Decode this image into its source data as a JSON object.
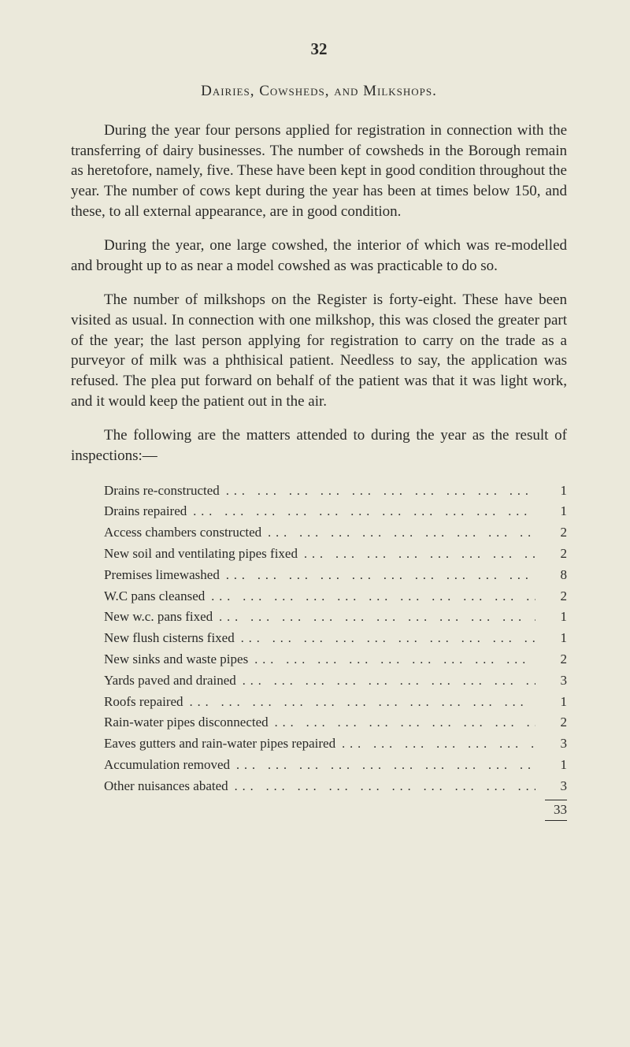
{
  "page_number": "32",
  "section_title": "Dairies, Cowsheds, and Milkshops.",
  "paragraphs": [
    "During the year four persons applied for registration in connection with the transferring of dairy businesses. The number of cowsheds in the Borough remain as heretofore, namely, five. These have been kept in good condition throughout the year. The number of cows kept during the year has been at times below 150, and these, to all external appearance, are in good condition.",
    "During the year, one large cowshed, the interior of which was re-modelled and brought up to as near a model cowshed as was practicable to do so.",
    "The number of milkshops on the Register is forty-eight. These have been visited as usual. In connection with one milkshop, this was closed the greater part of the year; the last person applying for registration to carry on the trade as a purveyor of milk was a phthisical patient. Needless to say, the application was refused. The plea put forward on behalf of the patient was that it was light work, and it would keep the patient out in the air.",
    "The following are the matters attended to during the year as the result of inspections:—"
  ],
  "list_items": [
    {
      "label": "Drains re-constructed",
      "value": "1"
    },
    {
      "label": "Drains repaired",
      "value": "1"
    },
    {
      "label": "Access chambers constructed",
      "value": "2"
    },
    {
      "label": "New soil and ventilating pipes fixed",
      "value": "2"
    },
    {
      "label": "Premises limewashed",
      "value": "8"
    },
    {
      "label": "W.C pans cleansed",
      "value": "2"
    },
    {
      "label": "New w.c. pans fixed",
      "value": "1"
    },
    {
      "label": "New flush cisterns fixed",
      "value": "1"
    },
    {
      "label": "New sinks and waste pipes",
      "value": "2"
    },
    {
      "label": "Yards paved and drained",
      "value": "3"
    },
    {
      "label": "Roofs repaired",
      "value": "1"
    },
    {
      "label": "Rain-water pipes disconnected",
      "value": "2"
    },
    {
      "label": "Eaves gutters and rain-water pipes repaired",
      "value": "3"
    },
    {
      "label": "Accumulation removed",
      "value": "1"
    },
    {
      "label": "Other nuisances abated",
      "value": "3"
    }
  ],
  "total": "33",
  "colors": {
    "background": "#ebe9db",
    "text": "#2a2a28"
  },
  "typography": {
    "body_fontsize": 19,
    "list_fontsize": 17,
    "font_family": "Georgia, Times New Roman, serif"
  }
}
